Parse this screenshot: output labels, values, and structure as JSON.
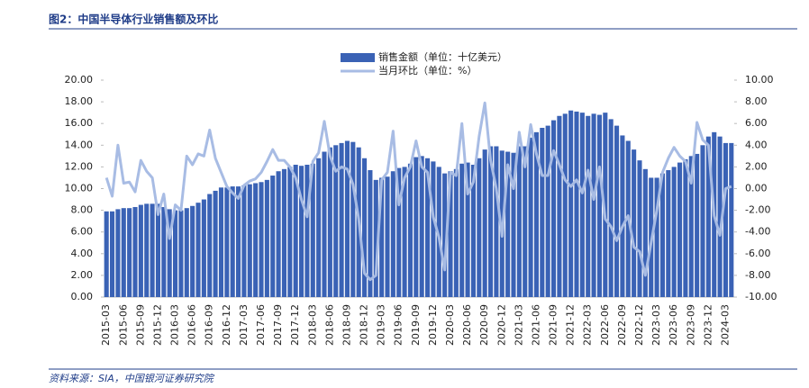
{
  "chart_data": {
    "type": "bar_line",
    "title": "图2：中国半导体行业销售额及环比",
    "source": "资料来源：SIA，中国银河证券研究院",
    "categories": [
      "2015-03",
      null,
      null,
      "2015-06",
      null,
      null,
      "2015-09",
      null,
      null,
      "2015-12",
      null,
      null,
      "2016-03",
      null,
      null,
      "2016-06",
      null,
      null,
      "2016-09",
      null,
      null,
      "2016-12",
      null,
      null,
      "2017-03",
      null,
      null,
      "2017-06",
      null,
      null,
      "2017-09",
      null,
      null,
      "2017-12",
      null,
      null,
      "2018-03",
      null,
      null,
      "2018-06",
      null,
      null,
      "2018-09",
      null,
      null,
      "2018-12",
      null,
      null,
      "2019-03",
      null,
      null,
      "2019-06",
      null,
      null,
      "2019-09",
      null,
      null,
      "2019-12",
      null,
      null,
      "2020-03",
      null,
      null,
      "2020-06",
      null,
      null,
      "2020-09",
      null,
      null,
      "2020-12",
      null,
      null,
      "2021-03",
      null,
      null,
      "2021-06",
      null,
      null,
      "2021-09",
      null,
      null,
      "2021-12",
      null,
      null,
      "2022-03",
      null,
      null,
      "2022-06",
      null,
      null,
      "2022-09",
      null,
      null,
      "2022-12",
      null,
      null,
      "2023-03",
      null,
      null,
      "2023-06",
      null,
      null,
      "2023-09",
      null,
      null,
      "2023-12",
      null,
      null,
      "2024-03",
      null
    ],
    "series": [
      {
        "name": "销售金额（单位：十亿美元）",
        "color": "#3a62b5",
        "type": "bar",
        "values": [
          7.9,
          7.9,
          8.1,
          8.2,
          8.2,
          8.3,
          8.5,
          8.6,
          8.6,
          8.6,
          8.3,
          8.1,
          8.0,
          8.0,
          8.2,
          8.4,
          8.7,
          9.0,
          9.5,
          9.8,
          10.1,
          10.1,
          10.2,
          10.2,
          10.3,
          10.4,
          10.5,
          10.6,
          10.8,
          11.2,
          11.6,
          11.8,
          12.0,
          12.2,
          12.1,
          12.2,
          12.3,
          12.8,
          13.4,
          13.8,
          14.0,
          14.2,
          14.4,
          14.3,
          13.8,
          12.8,
          11.7,
          10.8,
          11.0,
          11.1,
          11.6,
          11.9,
          12.0,
          12.3,
          12.9,
          13.0,
          12.8,
          12.5,
          12.0,
          11.4,
          11.6,
          11.8,
          12.3,
          12.4,
          12.2,
          12.8,
          13.6,
          13.9,
          13.9,
          13.5,
          13.4,
          13.3,
          13.9,
          13.9,
          14.7,
          15.2,
          15.6,
          15.8,
          16.3,
          16.7,
          16.9,
          17.2,
          17.1,
          17.0,
          16.7,
          16.9,
          16.8,
          17.0,
          16.4,
          15.8,
          14.9,
          14.4,
          13.6,
          12.6,
          11.8,
          11.0,
          11.0,
          11.4,
          11.7,
          12.0,
          12.4,
          12.7,
          13.0,
          13.2,
          14.0,
          14.8,
          15.2,
          14.8,
          14.2,
          14.2
        ]
      },
      {
        "name": "当月环比（单位：%）",
        "color": "#a8bce4",
        "type": "line",
        "axis": "y2",
        "values": [
          1.0,
          -0.7,
          4.0,
          0.5,
          0.6,
          -0.3,
          2.6,
          1.6,
          1.0,
          -2.4,
          -0.5,
          -4.6,
          -1.5,
          -2.0,
          3.0,
          2.2,
          3.2,
          3.0,
          5.4,
          2.8,
          1.5,
          0.2,
          -0.4,
          -0.9,
          0.3,
          0.7,
          0.9,
          1.5,
          2.5,
          3.6,
          2.6,
          2.6,
          2.0,
          1.0,
          -1.0,
          -2.6,
          2.5,
          3.3,
          6.2,
          3.0,
          1.6,
          2.0,
          1.8,
          0.4,
          -2.8,
          -7.8,
          -8.4,
          -8.0,
          0.8,
          1.5,
          5.3,
          -1.5,
          1.0,
          2.0,
          4.4,
          2.0,
          1.5,
          -2.6,
          -4.5,
          -7.5,
          1.5,
          1.2,
          6.0,
          -0.5,
          0.6,
          4.8,
          7.9,
          2.6,
          0.0,
          -4.4,
          2.2,
          0.0,
          5.2,
          2.0,
          5.9,
          3.2,
          1.2,
          1.2,
          3.5,
          2.2,
          0.8,
          0.2,
          0.8,
          -0.4,
          1.7,
          -1.0,
          2.0,
          -2.8,
          -3.5,
          -4.8,
          -3.5,
          -2.5,
          -5.4,
          -5.8,
          -8.0,
          -5.0,
          -2.0,
          1.5,
          2.8,
          3.8,
          3.0,
          2.5,
          0.5,
          6.1,
          4.5,
          4.0,
          -2.5,
          -4.3,
          0.0,
          0.2
        ]
      }
    ],
    "ylim": [
      0,
      20
    ],
    "yticks": [
      {
        "value": 0,
        "label": "0.00"
      },
      {
        "value": 2,
        "label": "2.00"
      },
      {
        "value": 4,
        "label": "4.00"
      },
      {
        "value": 6,
        "label": "6.00"
      },
      {
        "value": 8,
        "label": "8.00"
      },
      {
        "value": 10,
        "label": "10.00"
      },
      {
        "value": 12,
        "label": "12.00"
      },
      {
        "value": 14,
        "label": "14.00"
      },
      {
        "value": 16,
        "label": "16.00"
      },
      {
        "value": 18,
        "label": "18.00"
      },
      {
        "value": 20,
        "label": "20.00"
      }
    ],
    "y2lim": [
      -10,
      10
    ],
    "y2ticks": [
      {
        "value": -10,
        "label": "-10.00"
      },
      {
        "value": -8,
        "label": "-8.00"
      },
      {
        "value": -6,
        "label": "-6.00"
      },
      {
        "value": -4,
        "label": "-4.00"
      },
      {
        "value": -2,
        "label": "-2.00"
      },
      {
        "value": 0,
        "label": "0.00"
      },
      {
        "value": 2,
        "label": "2.00"
      },
      {
        "value": 4,
        "label": "4.00"
      },
      {
        "value": 6,
        "label": "6.00"
      },
      {
        "value": 8,
        "label": "8.00"
      },
      {
        "value": 10,
        "label": "10.00"
      }
    ]
  }
}
